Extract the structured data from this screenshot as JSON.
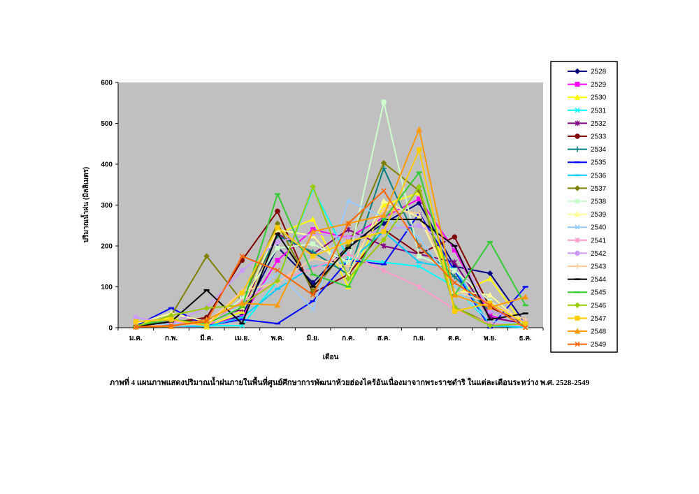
{
  "caption": "ภาพที่ 4   แผนภาพแสดงปริมาณน้ำฝนภายในพื้นที่ศูนย์ศึกษาการพัฒนาห้วยฮ่องไคร้อันเนื่องมาจากพระราชดำริ ในแต่ละเดือนระหว่าง พ.ศ. 2528-2549",
  "chart_data": {
    "type": "line",
    "xlabel": "เดือน",
    "ylabel": "ปริมาณน้ำฝน (มิลลิเมตร)",
    "ylim": [
      0,
      600
    ],
    "yticks": [
      0,
      100,
      200,
      300,
      400,
      500,
      600
    ],
    "background": "#c0c0c0",
    "legend_position": "right",
    "categories": [
      "ม.ค.",
      "ก.พ.",
      "มี.ค.",
      "เม.ย.",
      "พ.ค.",
      "มิ.ย.",
      "ก.ค.",
      "ส.ค.",
      "ก.ย.",
      "ต.ค.",
      "พ.ย.",
      "ธ.ค."
    ],
    "series": [
      {
        "name": "2528",
        "color": "#000080",
        "marker": "diamond",
        "values": [
          2,
          5,
          3,
          30,
          197,
          110,
          200,
          255,
          305,
          150,
          133,
          10
        ]
      },
      {
        "name": "2529",
        "color": "#ff00ff",
        "marker": "square",
        "values": [
          5,
          20,
          8,
          25,
          165,
          240,
          220,
          270,
          315,
          190,
          30,
          5
        ]
      },
      {
        "name": "2530",
        "color": "#ffff00",
        "marker": "triangle",
        "values": [
          10,
          25,
          2,
          40,
          230,
          265,
          100,
          300,
          330,
          80,
          120,
          3
        ]
      },
      {
        "name": "2531",
        "color": "#00ffff",
        "marker": "x",
        "values": [
          2,
          10,
          5,
          5,
          115,
          340,
          170,
          160,
          150,
          100,
          10,
          2
        ]
      },
      {
        "name": "2532",
        "color": "#800080",
        "marker": "star",
        "values": [
          3,
          15,
          20,
          45,
          230,
          180,
          240,
          200,
          180,
          160,
          25,
          10
        ]
      },
      {
        "name": "2533",
        "color": "#800000",
        "marker": "circle",
        "values": [
          5,
          12,
          25,
          165,
          285,
          85,
          130,
          240,
          180,
          222,
          50,
          10
        ]
      },
      {
        "name": "2534",
        "color": "#008080",
        "marker": "plus",
        "values": [
          2,
          8,
          15,
          60,
          225,
          185,
          130,
          390,
          200,
          125,
          40,
          15
        ]
      },
      {
        "name": "2535",
        "color": "#0000ff",
        "marker": "dash",
        "values": [
          5,
          48,
          5,
          20,
          10,
          65,
          165,
          155,
          280,
          140,
          0,
          100
        ]
      },
      {
        "name": "2536",
        "color": "#00ccff",
        "marker": "dash",
        "values": [
          3,
          5,
          3,
          25,
          95,
          150,
          160,
          235,
          160,
          145,
          5,
          0
        ]
      },
      {
        "name": "2537",
        "color": "#808000",
        "marker": "diamond",
        "values": [
          2,
          30,
          175,
          65,
          255,
          90,
          200,
          403,
          335,
          50,
          10,
          5
        ]
      },
      {
        "name": "2538",
        "color": "#ccffcc",
        "marker": "square",
        "values": [
          5,
          15,
          10,
          70,
          195,
          205,
          160,
          552,
          175,
          140,
          65,
          10
        ]
      },
      {
        "name": "2539",
        "color": "#ffff99",
        "marker": "triangle",
        "values": [
          10,
          35,
          15,
          50,
          240,
          225,
          130,
          310,
          270,
          90,
          80,
          5
        ]
      },
      {
        "name": "2540",
        "color": "#99ccff",
        "marker": "x",
        "values": [
          2,
          10,
          5,
          60,
          135,
          45,
          310,
          270,
          220,
          100,
          15,
          10
        ]
      },
      {
        "name": "2541",
        "color": "#ff99cc",
        "marker": "star",
        "values": [
          5,
          15,
          5,
          65,
          115,
          145,
          180,
          140,
          100,
          45,
          10,
          5
        ]
      },
      {
        "name": "2542",
        "color": "#cc99ff",
        "marker": "circle",
        "values": [
          25,
          10,
          50,
          140,
          210,
          230,
          220,
          240,
          250,
          200,
          40,
          15
        ]
      },
      {
        "name": "2543",
        "color": "#ffcc99",
        "marker": "plus",
        "values": [
          5,
          5,
          10,
          90,
          110,
          170,
          150,
          290,
          280,
          90,
          60,
          20
        ]
      },
      {
        "name": "2544",
        "color": "#000000",
        "marker": "dash",
        "values": [
          3,
          15,
          92,
          10,
          230,
          100,
          195,
          265,
          265,
          200,
          20,
          35
        ]
      },
      {
        "name": "2545",
        "color": "#33cc33",
        "marker": "dash",
        "values": [
          5,
          20,
          10,
          50,
          327,
          130,
          100,
          265,
          380,
          80,
          210,
          55
        ]
      },
      {
        "name": "2546",
        "color": "#99cc00",
        "marker": "diamond",
        "values": [
          3,
          30,
          48,
          55,
          115,
          345,
          120,
          215,
          345,
          50,
          5,
          10
        ]
      },
      {
        "name": "2547",
        "color": "#ffcc00",
        "marker": "square",
        "values": [
          15,
          20,
          5,
          85,
          245,
          175,
          210,
          235,
          435,
          40,
          60,
          10
        ]
      },
      {
        "name": "2548",
        "color": "#ff9900",
        "marker": "triangle",
        "values": [
          2,
          3,
          20,
          60,
          55,
          235,
          255,
          275,
          485,
          80,
          50,
          75
        ]
      },
      {
        "name": "2549",
        "color": "#ff6600",
        "marker": "x",
        "values": [
          2,
          5,
          15,
          175,
          140,
          80,
          255,
          335,
          200,
          110,
          55,
          0
        ]
      }
    ]
  }
}
